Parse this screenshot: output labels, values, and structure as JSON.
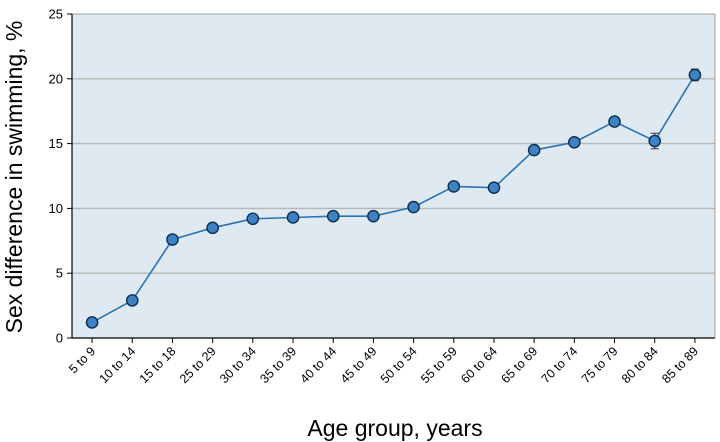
{
  "chart_data": {
    "type": "line",
    "title": "",
    "xlabel": "Age group, years",
    "ylabel": "Sex difference in swimming, %",
    "ylim": [
      0,
      25
    ],
    "yticks": [
      "0",
      "5",
      "10",
      "15",
      "20",
      "25"
    ],
    "grid": "horizontal",
    "colors": {
      "plot_background": "#dfe9f2",
      "line": "#2a73b3",
      "marker_fill": "#3d83c4",
      "marker_edge": "#0d2c4f",
      "grid": "#b7b7b7",
      "axis": "#000000"
    },
    "categories": [
      "5 to 9",
      "10 to 14",
      "15 to 18",
      "25 to 29",
      "30 to 34",
      "35 to 39",
      "40 to 44",
      "45 to 49",
      "50 to 54",
      "55 to 59",
      "60 to 64",
      "65 to 69",
      "70 to 74",
      "75 to 79",
      "80 to 84",
      "85 to 89"
    ],
    "series": [
      {
        "values": [
          1.2,
          2.9,
          7.6,
          8.5,
          9.2,
          9.3,
          9.4,
          9.4,
          10.1,
          11.7,
          11.6,
          14.5,
          15.1,
          16.7,
          15.2,
          20.3
        ],
        "error": [
          0.15,
          0.15,
          0.15,
          0.15,
          0.15,
          0.15,
          0.15,
          0.15,
          0.15,
          0.15,
          0.15,
          0.2,
          0.2,
          0.2,
          0.6,
          0.45
        ]
      }
    ]
  }
}
